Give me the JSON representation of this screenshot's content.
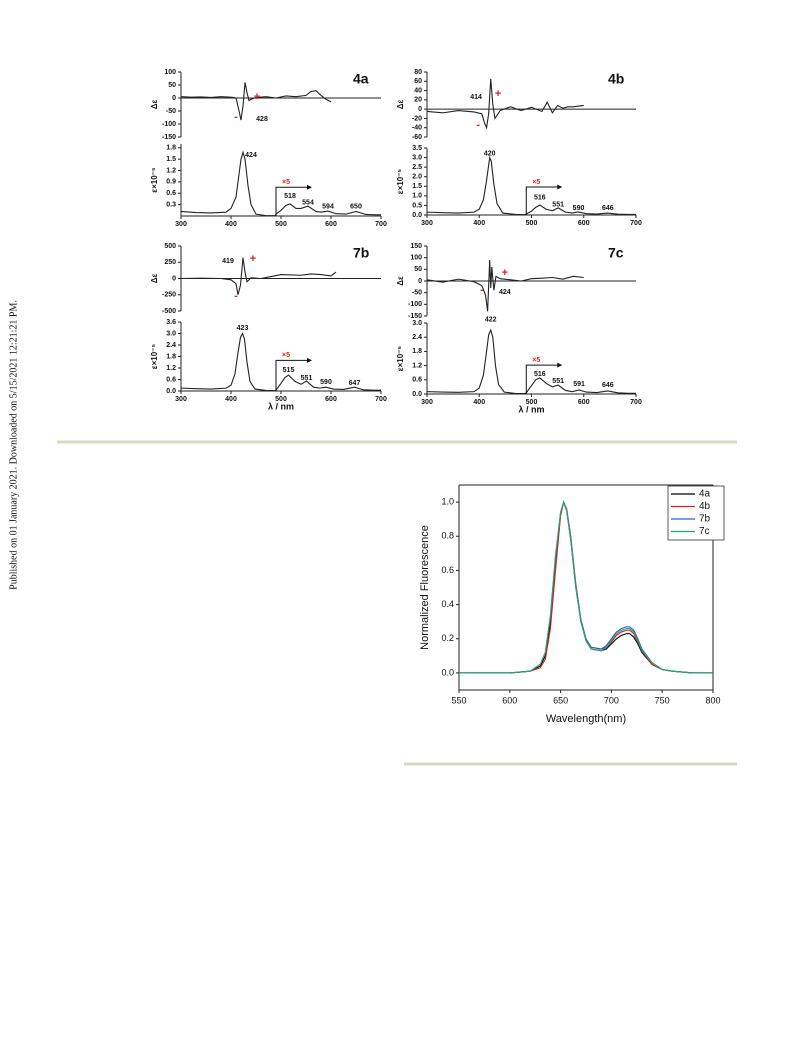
{
  "sidebar": {
    "text": "Published on 01 January 2021. Downloaded on 5/15/2021 12:21:21 PM."
  },
  "chart_data": [
    {
      "type": "line",
      "title": "4a",
      "ylabel": "Δε",
      "xlim": [
        300,
        700
      ],
      "ylim": [
        -150,
        100
      ],
      "yticks": [
        -150,
        -100,
        -50,
        0,
        50,
        100
      ],
      "zero_line": true,
      "color": "#222222",
      "x": [
        300,
        320,
        340,
        360,
        380,
        400,
        410,
        415,
        420,
        424,
        428,
        432,
        436,
        440,
        450,
        470,
        490,
        510,
        530,
        550,
        560,
        570,
        580,
        590,
        600
      ],
      "values": [
        5,
        3,
        4,
        2,
        5,
        3,
        0,
        -40,
        -85,
        -30,
        60,
        20,
        -10,
        -5,
        2,
        5,
        0,
        8,
        5,
        10,
        25,
        28,
        10,
        -5,
        -15
      ],
      "annotations": [
        {
          "label": "+",
          "x": 452,
          "y": 4,
          "color": "#e02020"
        },
        {
          "label": "-",
          "x": 410,
          "y": -73,
          "color": "#e02020"
        },
        {
          "label": "428",
          "x": 462,
          "y": -81
        }
      ]
    },
    {
      "type": "line",
      "ylabel": "ε×10⁻⁵",
      "xlim": [
        300,
        700
      ],
      "ylim": [
        0,
        1.9
      ],
      "yticks": [
        0.3,
        0.6,
        0.9,
        1.2,
        1.5,
        1.8
      ],
      "xticks": [
        300,
        400,
        500,
        600,
        700
      ],
      "color": "#222222",
      "x": [
        300,
        330,
        360,
        390,
        400,
        410,
        416,
        420,
        424,
        428,
        434,
        440,
        450,
        470,
        488,
        490,
        500,
        510,
        518,
        530,
        540,
        554,
        570,
        580,
        594,
        610,
        630,
        650,
        670,
        690,
        700
      ],
      "values": [
        0.12,
        0.09,
        0.08,
        0.1,
        0.2,
        0.5,
        1.1,
        1.5,
        1.68,
        1.5,
        0.8,
        0.3,
        0.05,
        0.01,
        0.01,
        0.05,
        0.15,
        0.28,
        0.32,
        0.2,
        0.2,
        0.26,
        0.12,
        0.1,
        0.13,
        0.06,
        0.05,
        0.12,
        0.04,
        0.03,
        0.03
      ],
      "annotations": [
        {
          "label": "424",
          "x": 440,
          "y": 1.6
        },
        {
          "label": "×5",
          "x": 490,
          "y": 0.76,
          "color": "#e02020",
          "arrow": true
        },
        {
          "label": "518",
          "x": 518,
          "y": 0.53
        },
        {
          "label": "554",
          "x": 554,
          "y": 0.35
        },
        {
          "label": "594",
          "x": 594,
          "y": 0.25
        },
        {
          "label": "650",
          "x": 650,
          "y": 0.25
        }
      ]
    },
    {
      "type": "line",
      "title": "4b",
      "ylabel": "Δε",
      "xlim": [
        300,
        700
      ],
      "ylim": [
        -60,
        80
      ],
      "yticks": [
        -60,
        -40,
        -20,
        0,
        20,
        40,
        60,
        80
      ],
      "zero_line": true,
      "color": "#222222",
      "x": [
        300,
        330,
        360,
        390,
        405,
        410,
        414,
        418,
        422,
        426,
        430,
        440,
        460,
        480,
        500,
        520,
        530,
        540,
        550,
        560,
        570,
        580,
        600
      ],
      "values": [
        -5,
        -8,
        -3,
        -6,
        -10,
        -30,
        -40,
        -10,
        65,
        10,
        -20,
        -3,
        5,
        -3,
        4,
        -5,
        15,
        -8,
        8,
        2,
        5,
        5,
        8
      ],
      "annotations": [
        {
          "label": "414",
          "x": 394,
          "y": 26
        },
        {
          "label": "+",
          "x": 436,
          "y": 32,
          "color": "#e02020"
        },
        {
          "label": "-",
          "x": 398,
          "y": -34,
          "color": "#e02020"
        }
      ]
    },
    {
      "type": "line",
      "ylabel": "ε×10⁻⁵",
      "xlim": [
        300,
        700
      ],
      "ylim": [
        0,
        3.5
      ],
      "yticks": [
        {
          "value": 0,
          "label": "0.0"
        },
        0.5,
        {
          "value": 1,
          "label": "1.0"
        },
        1.5,
        {
          "value": 2,
          "label": "2.0"
        },
        2.5,
        {
          "value": 3,
          "label": "3.0"
        },
        3.5
      ],
      "xticks": [
        300,
        400,
        500,
        600,
        700
      ],
      "color": "#222222",
      "x": [
        300,
        330,
        360,
        390,
        400,
        408,
        414,
        418,
        420,
        423,
        428,
        434,
        445,
        470,
        488,
        490,
        500,
        508,
        516,
        528,
        540,
        551,
        565,
        578,
        590,
        605,
        625,
        646,
        665,
        685,
        700
      ],
      "values": [
        0.15,
        0.12,
        0.1,
        0.15,
        0.3,
        0.8,
        1.8,
        2.6,
        3.0,
        2.8,
        1.6,
        0.6,
        0.1,
        0.03,
        0.02,
        0.05,
        0.2,
        0.4,
        0.52,
        0.3,
        0.22,
        0.37,
        0.15,
        0.1,
        0.16,
        0.07,
        0.05,
        0.1,
        0.04,
        0.03,
        0.03
      ],
      "annotations": [
        {
          "label": "420",
          "x": 420,
          "y": 3.2
        },
        {
          "label": "×5",
          "x": 490,
          "y": 1.46,
          "color": "#e02020",
          "arrow": true
        },
        {
          "label": "516",
          "x": 516,
          "y": 0.9
        },
        {
          "label": "551",
          "x": 551,
          "y": 0.55
        },
        {
          "label": "590",
          "x": 590,
          "y": 0.37
        },
        {
          "label": "646",
          "x": 646,
          "y": 0.37
        }
      ]
    },
    {
      "type": "line",
      "title": "7b",
      "ylabel": "Δε",
      "xlim": [
        300,
        700
      ],
      "ylim": [
        -500,
        500
      ],
      "yticks": [
        -500,
        -250,
        0,
        250,
        500
      ],
      "zero_line": true,
      "color": "#222222",
      "x": [
        300,
        340,
        380,
        400,
        410,
        414,
        419,
        424,
        428,
        432,
        440,
        460,
        480,
        500,
        540,
        560,
        580,
        600,
        610
      ],
      "values": [
        0,
        5,
        0,
        -20,
        -80,
        -250,
        -100,
        320,
        100,
        -50,
        10,
        0,
        30,
        60,
        50,
        70,
        60,
        40,
        100
      ],
      "annotations": [
        {
          "label": "419",
          "x": 394,
          "y": 270
        },
        {
          "label": "+",
          "x": 444,
          "y": 300,
          "color": "#e02020"
        },
        {
          "label": "-",
          "x": 410,
          "y": -270,
          "color": "#e02020"
        }
      ]
    },
    {
      "type": "line",
      "ylabel": "ε×10⁻⁵",
      "xlabel": "λ / nm",
      "xlim": [
        300,
        700
      ],
      "ylim": [
        0,
        3.6
      ],
      "yticks": [
        {
          "value": 0,
          "label": "0.0"
        },
        0.6,
        1.2,
        1.8,
        2.4,
        {
          "value": 3,
          "label": "3.0"
        },
        3.6
      ],
      "xticks": [
        300,
        400,
        500,
        600,
        700
      ],
      "color": "#222222",
      "x": [
        300,
        330,
        360,
        390,
        400,
        408,
        414,
        419,
        423,
        427,
        432,
        438,
        448,
        470,
        488,
        490,
        500,
        508,
        515,
        528,
        540,
        551,
        565,
        578,
        590,
        605,
        625,
        647,
        665,
        685,
        700
      ],
      "values": [
        0.15,
        0.12,
        0.1,
        0.15,
        0.3,
        0.9,
        2.0,
        2.8,
        3.0,
        2.7,
        1.5,
        0.5,
        0.1,
        0.03,
        0.02,
        0.05,
        0.4,
        0.7,
        0.83,
        0.5,
        0.35,
        0.52,
        0.2,
        0.15,
        0.2,
        0.1,
        0.08,
        0.2,
        0.06,
        0.04,
        0.04
      ],
      "annotations": [
        {
          "label": "423",
          "x": 423,
          "y": 3.28
        },
        {
          "label": "×5",
          "x": 490,
          "y": 1.6,
          "color": "#e02020",
          "arrow": true
        },
        {
          "label": "515",
          "x": 515,
          "y": 1.1
        },
        {
          "label": "551",
          "x": 551,
          "y": 0.68
        },
        {
          "label": "590",
          "x": 590,
          "y": 0.47
        },
        {
          "label": "647",
          "x": 647,
          "y": 0.42
        }
      ]
    },
    {
      "type": "line",
      "title": "7c",
      "ylabel": "Δε",
      "xlim": [
        300,
        700
      ],
      "ylim": [
        -150,
        150
      ],
      "yticks": [
        -150,
        -100,
        -50,
        0,
        50,
        100,
        150
      ],
      "zero_line": true,
      "color": "#222222",
      "x": [
        300,
        330,
        360,
        390,
        405,
        412,
        416,
        420,
        422,
        424,
        428,
        432,
        440,
        460,
        480,
        500,
        520,
        540,
        560,
        580,
        600
      ],
      "values": [
        5,
        -5,
        8,
        -3,
        -20,
        -60,
        -130,
        90,
        -30,
        60,
        -40,
        20,
        10,
        5,
        0,
        10,
        12,
        15,
        8,
        20,
        15
      ],
      "annotations": [
        {
          "label": "+",
          "x": 449,
          "y": 34,
          "color": "#e02020"
        },
        {
          "label": "-",
          "x": 405,
          "y": -39,
          "color": "#e02020"
        },
        {
          "label": "424",
          "x": 449,
          "y": -47
        }
      ]
    },
    {
      "type": "line",
      "ylabel": "ε×10⁻⁵",
      "xlabel": "λ / nm",
      "xlim": [
        300,
        700
      ],
      "ylim": [
        0,
        3.0
      ],
      "yticks": [
        {
          "value": 0,
          "label": "0.0"
        },
        0.6,
        1.2,
        1.8,
        2.4,
        {
          "value": 3,
          "label": "3.0"
        }
      ],
      "xticks": [
        300,
        400,
        500,
        600,
        700
      ],
      "color": "#222222",
      "x": [
        300,
        330,
        360,
        390,
        400,
        408,
        414,
        418,
        422,
        426,
        431,
        437,
        448,
        470,
        488,
        490,
        500,
        508,
        516,
        528,
        540,
        551,
        565,
        578,
        591,
        605,
        625,
        646,
        665,
        685,
        700
      ],
      "values": [
        0.1,
        0.08,
        0.07,
        0.1,
        0.25,
        0.8,
        1.8,
        2.5,
        2.7,
        2.4,
        1.2,
        0.4,
        0.08,
        0.02,
        0.02,
        0.05,
        0.35,
        0.6,
        0.68,
        0.45,
        0.3,
        0.38,
        0.15,
        0.1,
        0.17,
        0.08,
        0.06,
        0.13,
        0.05,
        0.03,
        0.03
      ],
      "annotations": [
        {
          "label": "422",
          "x": 422,
          "y": 3.15
        },
        {
          "label": "×5",
          "x": 490,
          "y": 1.22,
          "color": "#e02020",
          "arrow": true
        },
        {
          "label": "516",
          "x": 516,
          "y": 0.84
        },
        {
          "label": "551",
          "x": 551,
          "y": 0.55
        },
        {
          "label": "591",
          "x": 591,
          "y": 0.42
        },
        {
          "label": "646",
          "x": 646,
          "y": 0.38
        }
      ]
    },
    {
      "type": "line",
      "ylabel": "Normalized Fluorescence",
      "xlabel": "Wavelength(nm)",
      "xlim": [
        550,
        800
      ],
      "ylim": [
        -0.1,
        1.1
      ],
      "frame": true,
      "legend": "upper right",
      "xticks": [
        550,
        600,
        650,
        700,
        750,
        800
      ],
      "yticks": [
        {
          "value": 0,
          "label": "0.0"
        },
        0.2,
        0.4,
        0.6,
        0.8,
        {
          "value": 1,
          "label": "1.0"
        }
      ],
      "x": [
        550,
        600,
        620,
        630,
        635,
        640,
        645,
        650,
        653,
        656,
        660,
        665,
        670,
        675,
        680,
        690,
        695,
        700,
        705,
        710,
        715,
        718,
        722,
        726,
        730,
        740,
        750,
        760,
        780,
        800
      ],
      "series": [
        {
          "name": "4a",
          "color": "#000000",
          "values": [
            0,
            0,
            0.01,
            0.04,
            0.1,
            0.3,
            0.65,
            0.93,
            1.0,
            0.95,
            0.78,
            0.5,
            0.3,
            0.19,
            0.14,
            0.13,
            0.14,
            0.17,
            0.2,
            0.22,
            0.23,
            0.23,
            0.21,
            0.17,
            0.12,
            0.05,
            0.02,
            0.01,
            0,
            0
          ]
        },
        {
          "name": "4b",
          "color": "#e02020",
          "values": [
            0,
            0,
            0.01,
            0.03,
            0.08,
            0.26,
            0.6,
            0.92,
            1.0,
            0.96,
            0.8,
            0.52,
            0.31,
            0.2,
            0.15,
            0.14,
            0.15,
            0.18,
            0.22,
            0.24,
            0.25,
            0.25,
            0.23,
            0.18,
            0.13,
            0.05,
            0.02,
            0.01,
            0,
            0
          ]
        },
        {
          "name": "7b",
          "color": "#2a5cd6",
          "values": [
            0,
            0,
            0.01,
            0.05,
            0.12,
            0.33,
            0.68,
            0.94,
            1.0,
            0.95,
            0.79,
            0.51,
            0.31,
            0.2,
            0.15,
            0.14,
            0.16,
            0.2,
            0.24,
            0.26,
            0.27,
            0.27,
            0.25,
            0.2,
            0.14,
            0.06,
            0.02,
            0.01,
            0,
            0
          ]
        },
        {
          "name": "7c",
          "color": "#22a872",
          "values": [
            0,
            0,
            0.01,
            0.05,
            0.12,
            0.34,
            0.69,
            0.94,
            1.0,
            0.95,
            0.78,
            0.5,
            0.3,
            0.19,
            0.14,
            0.13,
            0.15,
            0.19,
            0.23,
            0.25,
            0.26,
            0.26,
            0.24,
            0.19,
            0.13,
            0.06,
            0.02,
            0.01,
            0,
            0
          ]
        }
      ]
    }
  ]
}
